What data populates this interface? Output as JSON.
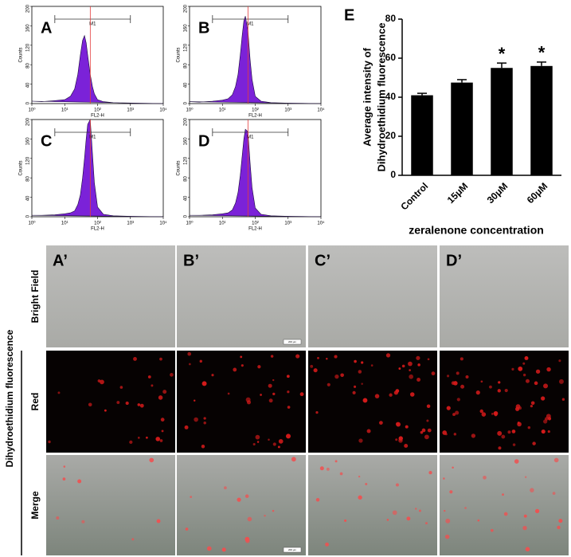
{
  "chart_data": [
    {
      "type": "area",
      "panel": "A",
      "ylabel": "Counts",
      "xlabel": "FL2-H",
      "xscale": "log",
      "color": "#7b22d8",
      "x": [
        1,
        2,
        5,
        10,
        15,
        20,
        25,
        30,
        35,
        40,
        45,
        50,
        60,
        70,
        80,
        100,
        150,
        300,
        1000,
        10000
      ],
      "values": [
        5,
        4,
        6,
        8,
        15,
        30,
        60,
        100,
        130,
        140,
        125,
        100,
        60,
        35,
        20,
        8,
        4,
        2,
        1,
        0
      ],
      "xlim": [
        1,
        10000
      ],
      "ylim": [
        0,
        200
      ],
      "yticks": [
        0,
        40,
        80,
        120,
        160,
        200
      ],
      "xticks": [
        {
          "value": 1,
          "label": "10⁰"
        },
        {
          "value": 10,
          "label": "10¹"
        },
        {
          "value": 100,
          "label": "10²"
        },
        {
          "value": 1000,
          "label": "10³"
        },
        {
          "value": 10000,
          "label": "10⁴"
        }
      ],
      "gate": {
        "label": "M1",
        "range": [
          5,
          1000
        ]
      },
      "marker_x": 60,
      "marker_color": "#e23c3c"
    },
    {
      "type": "area",
      "panel": "B",
      "ylabel": "Counts",
      "xlabel": "FL2-H",
      "xscale": "log",
      "color": "#7b22d8",
      "x": [
        1,
        2,
        5,
        10,
        15,
        20,
        25,
        30,
        35,
        40,
        45,
        50,
        60,
        70,
        80,
        100,
        150,
        300,
        1000,
        10000
      ],
      "values": [
        4,
        3,
        5,
        7,
        10,
        18,
        35,
        60,
        100,
        140,
        170,
        180,
        150,
        90,
        50,
        15,
        5,
        2,
        1,
        0
      ],
      "xlim": [
        1,
        10000
      ],
      "ylim": [
        0,
        200
      ],
      "yticks": [
        0,
        40,
        80,
        120,
        160,
        200
      ],
      "xticks": [
        {
          "value": 1,
          "label": "10⁰"
        },
        {
          "value": 10,
          "label": "10¹"
        },
        {
          "value": 100,
          "label": "10²"
        },
        {
          "value": 1000,
          "label": "10³"
        },
        {
          "value": 10000,
          "label": "10⁴"
        }
      ],
      "gate": {
        "label": "M1",
        "range": [
          5,
          1000
        ]
      },
      "marker_x": 60,
      "marker_color": "#e23c3c"
    },
    {
      "type": "area",
      "panel": "C",
      "ylabel": "Counts",
      "xlabel": "FL2-H",
      "xscale": "log",
      "color": "#7b22d8",
      "x": [
        1,
        2,
        5,
        10,
        15,
        20,
        25,
        30,
        35,
        40,
        45,
        50,
        60,
        70,
        80,
        100,
        150,
        300,
        1000,
        10000
      ],
      "values": [
        3,
        3,
        4,
        6,
        8,
        12,
        25,
        45,
        80,
        120,
        160,
        190,
        200,
        130,
        70,
        20,
        5,
        2,
        1,
        0
      ],
      "xlim": [
        1,
        10000
      ],
      "ylim": [
        0,
        200
      ],
      "yticks": [
        0,
        40,
        80,
        120,
        160,
        200
      ],
      "xticks": [
        {
          "value": 1,
          "label": "10⁰"
        },
        {
          "value": 10,
          "label": "10¹"
        },
        {
          "value": 100,
          "label": "10²"
        },
        {
          "value": 1000,
          "label": "10³"
        },
        {
          "value": 10000,
          "label": "10⁴"
        }
      ],
      "gate": {
        "label": "M1",
        "range": [
          5,
          1000
        ]
      },
      "marker_x": 60,
      "marker_color": "#e23c3c"
    },
    {
      "type": "area",
      "panel": "D",
      "ylabel": "Counts",
      "xlabel": "FL2-H",
      "xscale": "log",
      "color": "#7b22d8",
      "x": [
        1,
        2,
        5,
        10,
        15,
        20,
        25,
        30,
        35,
        40,
        45,
        50,
        60,
        70,
        80,
        100,
        150,
        300,
        1000,
        10000
      ],
      "values": [
        3,
        3,
        4,
        6,
        8,
        14,
        28,
        50,
        85,
        125,
        160,
        180,
        175,
        110,
        60,
        18,
        5,
        2,
        1,
        0
      ],
      "xlim": [
        1,
        10000
      ],
      "ylim": [
        0,
        200
      ],
      "yticks": [
        0,
        40,
        80,
        120,
        160,
        200
      ],
      "xticks": [
        {
          "value": 1,
          "label": "10⁰"
        },
        {
          "value": 10,
          "label": "10¹"
        },
        {
          "value": 100,
          "label": "10²"
        },
        {
          "value": 1000,
          "label": "10³"
        },
        {
          "value": 10000,
          "label": "10⁴"
        }
      ],
      "gate": {
        "label": "M1",
        "range": [
          5,
          1000
        ]
      },
      "marker_x": 60,
      "marker_color": "#e23c3c"
    },
    {
      "type": "bar",
      "panel": "E",
      "ylabel": [
        "Average intensity of",
        "Dihydroethidium fluorescence"
      ],
      "xlabel": "zeralenone concentration",
      "color": "#000000",
      "categories": [
        "Control",
        "15μM",
        "30μM",
        "60μM"
      ],
      "values": [
        41,
        47.5,
        55,
        56
      ],
      "errors": [
        1,
        1.5,
        2.5,
        2
      ],
      "significance": [
        null,
        null,
        "*",
        "*"
      ],
      "ylim": [
        0,
        80
      ],
      "yticks": [
        0,
        20,
        40,
        60,
        80
      ]
    }
  ],
  "micrographs": {
    "columns": [
      "A’",
      "B’",
      "C’",
      "D’"
    ],
    "rows": [
      "Bright Field",
      "Red",
      "Merge"
    ],
    "group_label": "Dihydroethidium fluorescence",
    "scale_bar": "200 μm"
  }
}
